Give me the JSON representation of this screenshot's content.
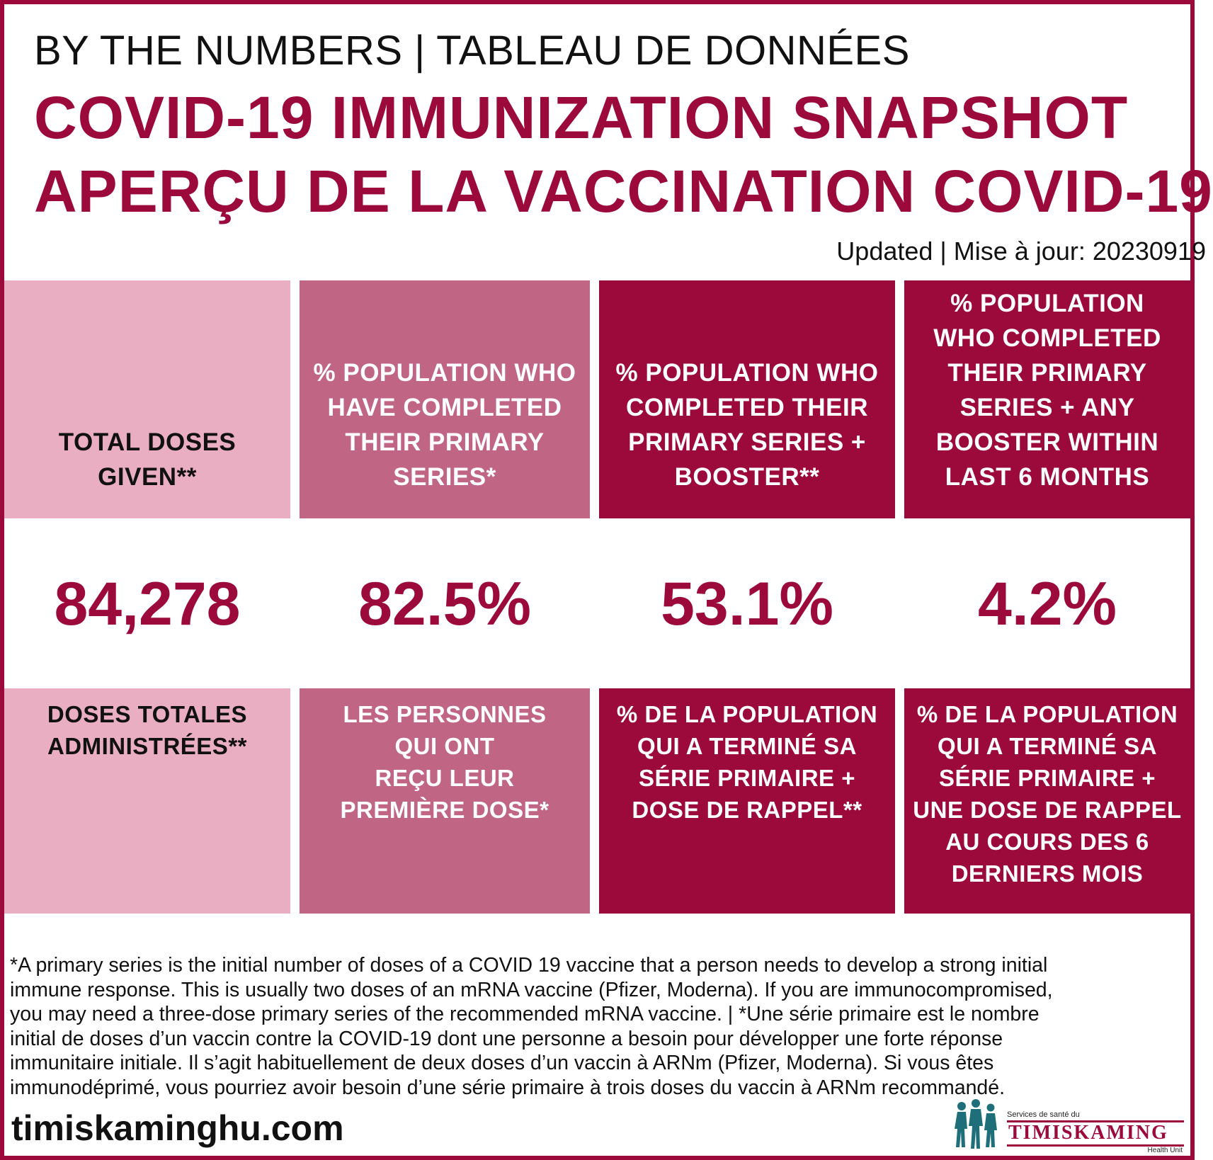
{
  "header": {
    "kicker": "BY THE NUMBERS | TABLEAU DE DONNÉES",
    "title_en": "COVID-19 IMMUNIZATION SNAPSHOT",
    "title_fr": "APERÇU DE LA VACCINATION COVID-19",
    "updated": "Updated | Mise à jour: 20230919"
  },
  "cards": [
    {
      "label_en": [
        "TOTAL DOSES",
        "GIVEN**"
      ],
      "value": "84,278",
      "label_fr": [
        "DOSES TOTALES",
        "ADMINISTRÉES**"
      ],
      "color": "#e9aec2"
    },
    {
      "label_en": [
        "% POPULATION WHO",
        "HAVE COMPLETED",
        "THEIR PRIMARY",
        "SERIES*"
      ],
      "value": "82.5%",
      "label_fr": [
        "LES PERSONNES",
        "QUI ONT",
        "REÇU LEUR",
        "PREMIÈRE DOSE*"
      ],
      "color": "#c06684"
    },
    {
      "label_en": [
        "% POPULATION WHO",
        "COMPLETED THEIR",
        "PRIMARY SERIES +",
        "BOOSTER**"
      ],
      "value": "53.1%",
      "label_fr": [
        "% DE LA POPULATION",
        "QUI A TERMINÉ SA",
        "SÉRIE PRIMAIRE +",
        "DOSE DE RAPPEL**"
      ],
      "color": "#9b0a3a"
    },
    {
      "label_en": [
        "% POPULATION",
        "WHO COMPLETED",
        "THEIR PRIMARY",
        "SERIES + ANY",
        "BOOSTER WITHIN",
        "LAST 6 MONTHS"
      ],
      "value": "4.2%",
      "label_fr": [
        "% DE LA POPULATION",
        "QUI A TERMINÉ SA",
        "SÉRIE PRIMAIRE +",
        "UNE DOSE DE RAPPEL",
        "AU COURS DES 6",
        "DERNIERS MOIS"
      ],
      "color": "#9b0a3a"
    }
  ],
  "footnote": [
    "*A primary series is the initial number of doses of a COVID 19 vaccine that a person needs to develop a strong initial",
    "immune response. This is usually two doses of an mRNA vaccine (Pfizer, Moderna). If you are immunocompromised,",
    "you may need a three-dose primary series of the recommended mRNA vaccine. | *Une série primaire est le nombre",
    "initial de doses d’un vaccin contre la COVID-19 dont une personne a besoin pour développer une forte réponse",
    "immunitaire initiale. Il s’agit habituellement de deux doses d’un vaccin à ARNm (Pfizer, Moderna). Si vous êtes",
    "immunodéprimé, vous pourriez avoir besoin d’une série primaire à trois doses du vaccin à ARNm recommandé."
  ],
  "footer": {
    "website": "timiskaminghu.com",
    "logo": {
      "small_text": "Services de santé du",
      "name": "TIMISKAMING",
      "tagline": "Health Unit",
      "icon": "health-unit-people-icon"
    }
  },
  "colors": {
    "accent": "#9b0a3a",
    "light_pink": "#e9aec2",
    "medium_pink": "#c06684"
  }
}
